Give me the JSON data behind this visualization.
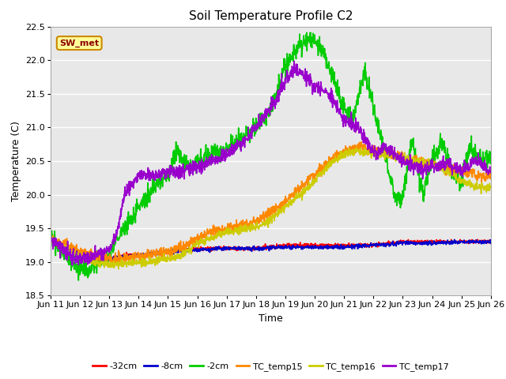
{
  "title": "Soil Temperature Profile C2",
  "xlabel": "Time",
  "ylabel": "Temperature (C)",
  "ylim": [
    18.5,
    22.5
  ],
  "annotation": "SW_met",
  "legend_labels": [
    "-32cm",
    "-8cm",
    "-2cm",
    "TC_temp15",
    "TC_temp16",
    "TC_temp17"
  ],
  "line_colors": [
    "#ff0000",
    "#0000cc",
    "#00cc00",
    "#ff8800",
    "#cccc00",
    "#9900cc"
  ],
  "background_color": "#e8e8e8",
  "grid_color": "#ffffff",
  "title_fontsize": 11,
  "axis_fontsize": 9,
  "tick_fontsize": 8
}
